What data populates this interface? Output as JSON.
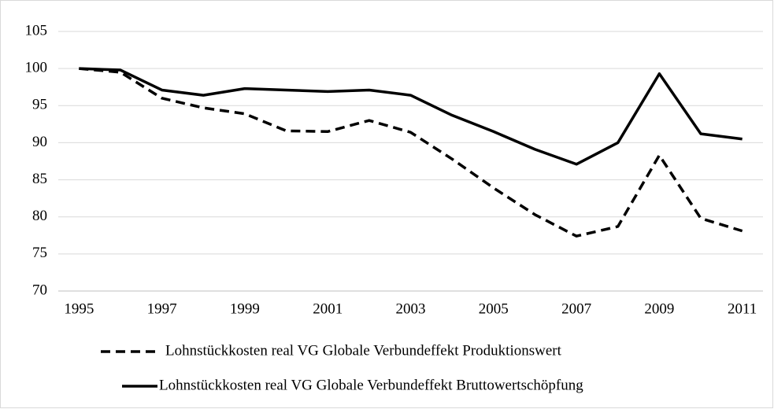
{
  "chart_data": {
    "type": "line",
    "x": [
      1995,
      1996,
      1997,
      1998,
      1999,
      2000,
      2001,
      2002,
      2003,
      2004,
      2005,
      2006,
      2007,
      2008,
      2009,
      2010,
      2011
    ],
    "series": [
      {
        "name": "Lohnstückkosten real VG Globale Verbundeffekt Produktionswert",
        "color": "#000000",
        "dash": true,
        "values": [
          100,
          99.5,
          96,
          94.7,
          93.9,
          91.6,
          91.5,
          93,
          91.4,
          87.8,
          83.9,
          80.3,
          77.4,
          78.7,
          88.3,
          79.8,
          78.1
        ]
      },
      {
        "name": "Lohnstückkosten real VG Globale Verbundeffekt Bruttowertschöpfung",
        "color": "#000000",
        "dash": false,
        "values": [
          100,
          99.8,
          97.1,
          96.4,
          97.3,
          97.1,
          96.9,
          97.1,
          96.4,
          93.7,
          91.5,
          89.1,
          87.1,
          90,
          99.3,
          91.2,
          90.5
        ]
      }
    ],
    "xlim": [
      1994.5,
      2011.5
    ],
    "xticks": [
      1995,
      1997,
      1999,
      2001,
      2003,
      2005,
      2007,
      2009,
      2011
    ],
    "ylim": [
      70,
      105
    ],
    "yticks": [
      70,
      75,
      80,
      85,
      90,
      95,
      100,
      105
    ],
    "grid": true,
    "legend": "bottom"
  }
}
